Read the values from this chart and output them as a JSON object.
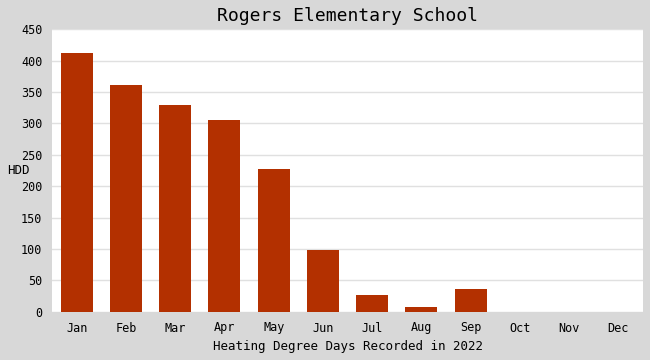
{
  "title": "Rogers Elementary School",
  "xlabel": "Heating Degree Days Recorded in 2022",
  "ylabel": "HDD",
  "categories": [
    "Jan",
    "Feb",
    "Mar",
    "Apr",
    "May",
    "Jun",
    "Jul",
    "Aug",
    "Sep",
    "Oct",
    "Nov",
    "Dec"
  ],
  "values": [
    413,
    362,
    330,
    305,
    228,
    98,
    26,
    8,
    37,
    0,
    0,
    0
  ],
  "bar_color": "#b33000",
  "ylim": [
    0,
    450
  ],
  "yticks": [
    0,
    50,
    100,
    150,
    200,
    250,
    300,
    350,
    400,
    450
  ],
  "plot_bg_color": "#ffffff",
  "fig_bg_color": "#d8d8d8",
  "grid_color": "#e0e0e0",
  "title_fontsize": 13,
  "label_fontsize": 9,
  "tick_fontsize": 8.5,
  "font_family": "monospace"
}
